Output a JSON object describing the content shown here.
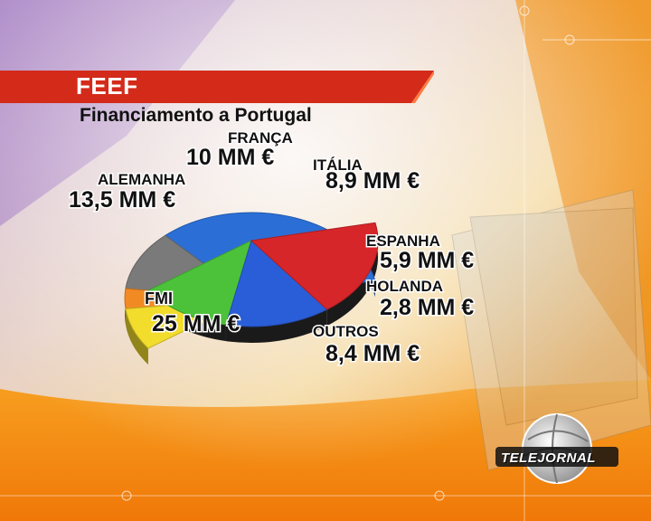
{
  "header": {
    "title": "FEEF",
    "subtitle": "Financiamento a Portugal"
  },
  "logo": {
    "text": "TELEJORNAL"
  },
  "colors": {
    "header_red": "#d42a1a",
    "fmi": "#2b6fd6",
    "alemanha": "#d7262a",
    "franca": "#2a5ed8",
    "italia": "#4cc23a",
    "espanha": "#f2dc2c",
    "holanda": "#f28a24",
    "outros": "#7a7a7a"
  },
  "chart_data": {
    "type": "pie",
    "title": "Financiamento a Portugal",
    "unit": "MM €",
    "slices": [
      {
        "name": "FMI",
        "value": 25,
        "value_label": "25 MM €",
        "color": "#2b6fd6",
        "exploded": false
      },
      {
        "name": "OUTROS",
        "value": 8.4,
        "value_label": "8,4 MM €",
        "color": "#7a7a7a",
        "exploded": false
      },
      {
        "name": "HOLANDA",
        "value": 2.8,
        "value_label": "2,8 MM €",
        "color": "#f28a24",
        "exploded": false
      },
      {
        "name": "ESPANHA",
        "value": 5.9,
        "value_label": "5,9 MM €",
        "color": "#f2dc2c",
        "exploded": false
      },
      {
        "name": "ITÁLIA",
        "value": 8.9,
        "value_label": "8,9 MM €",
        "color": "#4cc23a",
        "exploded": true
      },
      {
        "name": "FRANÇA",
        "value": 10,
        "value_label": "10 MM €",
        "color": "#2a5ed8",
        "exploded": true
      },
      {
        "name": "ALEMANHA",
        "value": 13.5,
        "value_label": "13,5 MM €",
        "color": "#d7262a",
        "exploded": true
      }
    ]
  }
}
